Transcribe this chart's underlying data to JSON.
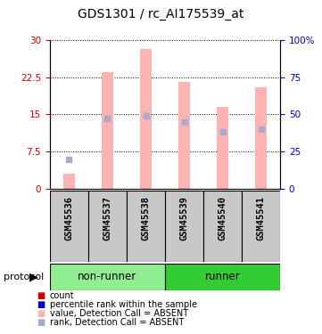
{
  "title": "GDS1301 / rc_AI175539_at",
  "samples": [
    "GSM45536",
    "GSM45537",
    "GSM45538",
    "GSM45539",
    "GSM45540",
    "GSM45541"
  ],
  "bar_values": [
    3.0,
    23.5,
    28.2,
    21.5,
    16.5,
    20.5
  ],
  "rank_values_pct": [
    20,
    47,
    49,
    45,
    38,
    40
  ],
  "bar_color": "#FFB3B3",
  "rank_color": "#AAAACC",
  "left_ylim": [
    0,
    30
  ],
  "right_ylim": [
    0,
    100
  ],
  "left_yticks": [
    0,
    7.5,
    15,
    22.5,
    30
  ],
  "left_yticklabels": [
    "0",
    "7.5",
    "15",
    "22.5",
    "30"
  ],
  "right_yticks": [
    0,
    25,
    50,
    75,
    100
  ],
  "right_yticklabels": [
    "0",
    "25",
    "50",
    "75",
    "100%"
  ],
  "group_info": [
    {
      "start": 0,
      "end": 2,
      "label": "non-runner",
      "color": "#90EE90"
    },
    {
      "start": 3,
      "end": 5,
      "label": "runner",
      "color": "#33CC33"
    }
  ],
  "protocol_label": "protocol",
  "background_color": "#ffffff",
  "left_tick_color": "#CC0000",
  "right_tick_color": "#0000CC",
  "legend_colors": [
    "#CC0000",
    "#0000CC",
    "#FFB3B3",
    "#AAAACC"
  ],
  "legend_labels": [
    "count",
    "percentile rank within the sample",
    "value, Detection Call = ABSENT",
    "rank, Detection Call = ABSENT"
  ],
  "sample_bg_color": "#C8C8C8",
  "bar_width": 0.3
}
